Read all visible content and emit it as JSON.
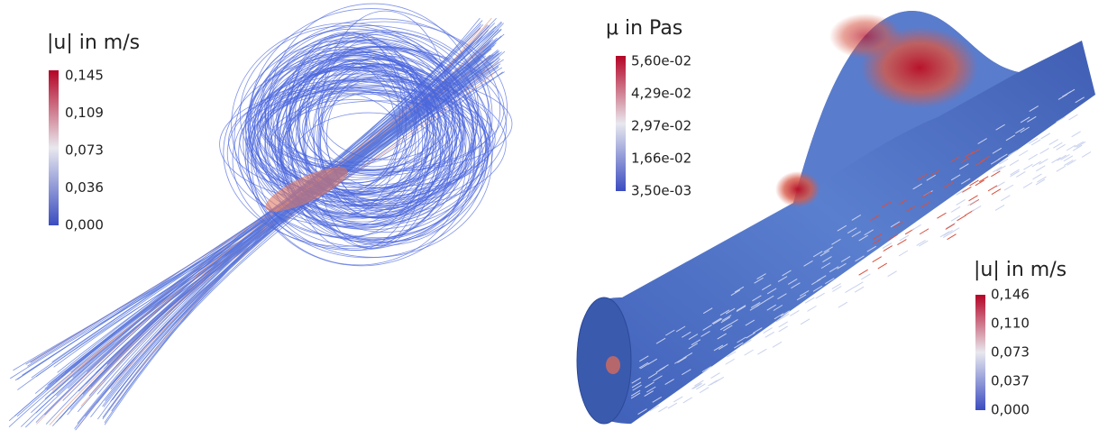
{
  "panels": [
    {
      "colorbar": {
        "title": "|u| in m/s",
        "ticks": [
          "0,145",
          "0,109",
          "0,073",
          "0,036",
          "0,000"
        ]
      }
    },
    {
      "colorbars": [
        {
          "title": "μ in Pas",
          "ticks": [
            "5,60e-02",
            "4,29e-02",
            "2,97e-02",
            "1,66e-02",
            "3,50e-03"
          ]
        },
        {
          "title": "|u| in m/s",
          "ticks": [
            "0,146",
            "0,110",
            "0,073",
            "0,037",
            "0,000"
          ]
        }
      ]
    }
  ]
}
